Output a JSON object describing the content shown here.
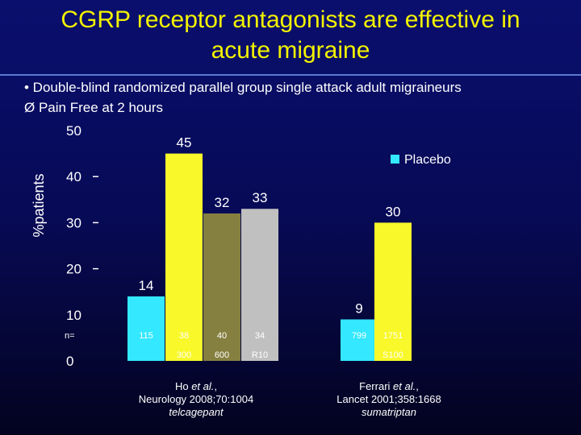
{
  "title_line1": "CGRP receptor antagonists are effective in",
  "title_line2": "acute migraine",
  "bullet1": "• Double-blind randomized parallel group single attack adult migraineurs",
  "bullet2": "Ø  Pain Free at 2 hours",
  "n_label": "n=",
  "chart_data": {
    "type": "bar",
    "ylabel": "%patients",
    "ylim": [
      0,
      50
    ],
    "yticks": [
      0,
      10,
      20,
      30,
      40,
      50
    ],
    "legend": [
      {
        "name": "Placebo",
        "color": "#33e8ff"
      }
    ],
    "legend_position": "top-right",
    "bars": [
      {
        "value": 14,
        "label": "14",
        "color": "#33e8ff",
        "n": "115",
        "dose": ""
      },
      {
        "value": 45,
        "label": "45",
        "color": "#f8f82a",
        "n": "38",
        "dose": "300"
      },
      {
        "value": 32,
        "label": "32",
        "color": "#858040",
        "n": "40",
        "dose": "600"
      },
      {
        "value": 33,
        "label": "33",
        "color": "#c0c0c0",
        "n": "34",
        "dose": "R10"
      },
      {
        "value": 9,
        "label": "9",
        "color": "#33e8ff",
        "n": "799",
        "dose": ""
      },
      {
        "value": 30,
        "label": "30",
        "color": "#f8f82a",
        "n": "1751",
        "dose": "S100"
      }
    ]
  },
  "ref1": {
    "line1_a": "Ho ",
    "line1_b": "et al.",
    "line1_c": ",",
    "line2": "Neurology 2008;70:1004",
    "line3": "telcagepant"
  },
  "ref2": {
    "line1_a": "Ferrari ",
    "line1_b": "et al.",
    "line1_c": ",",
    "line2": "Lancet 2001;358:1668",
    "line3": "sumatriptan"
  }
}
